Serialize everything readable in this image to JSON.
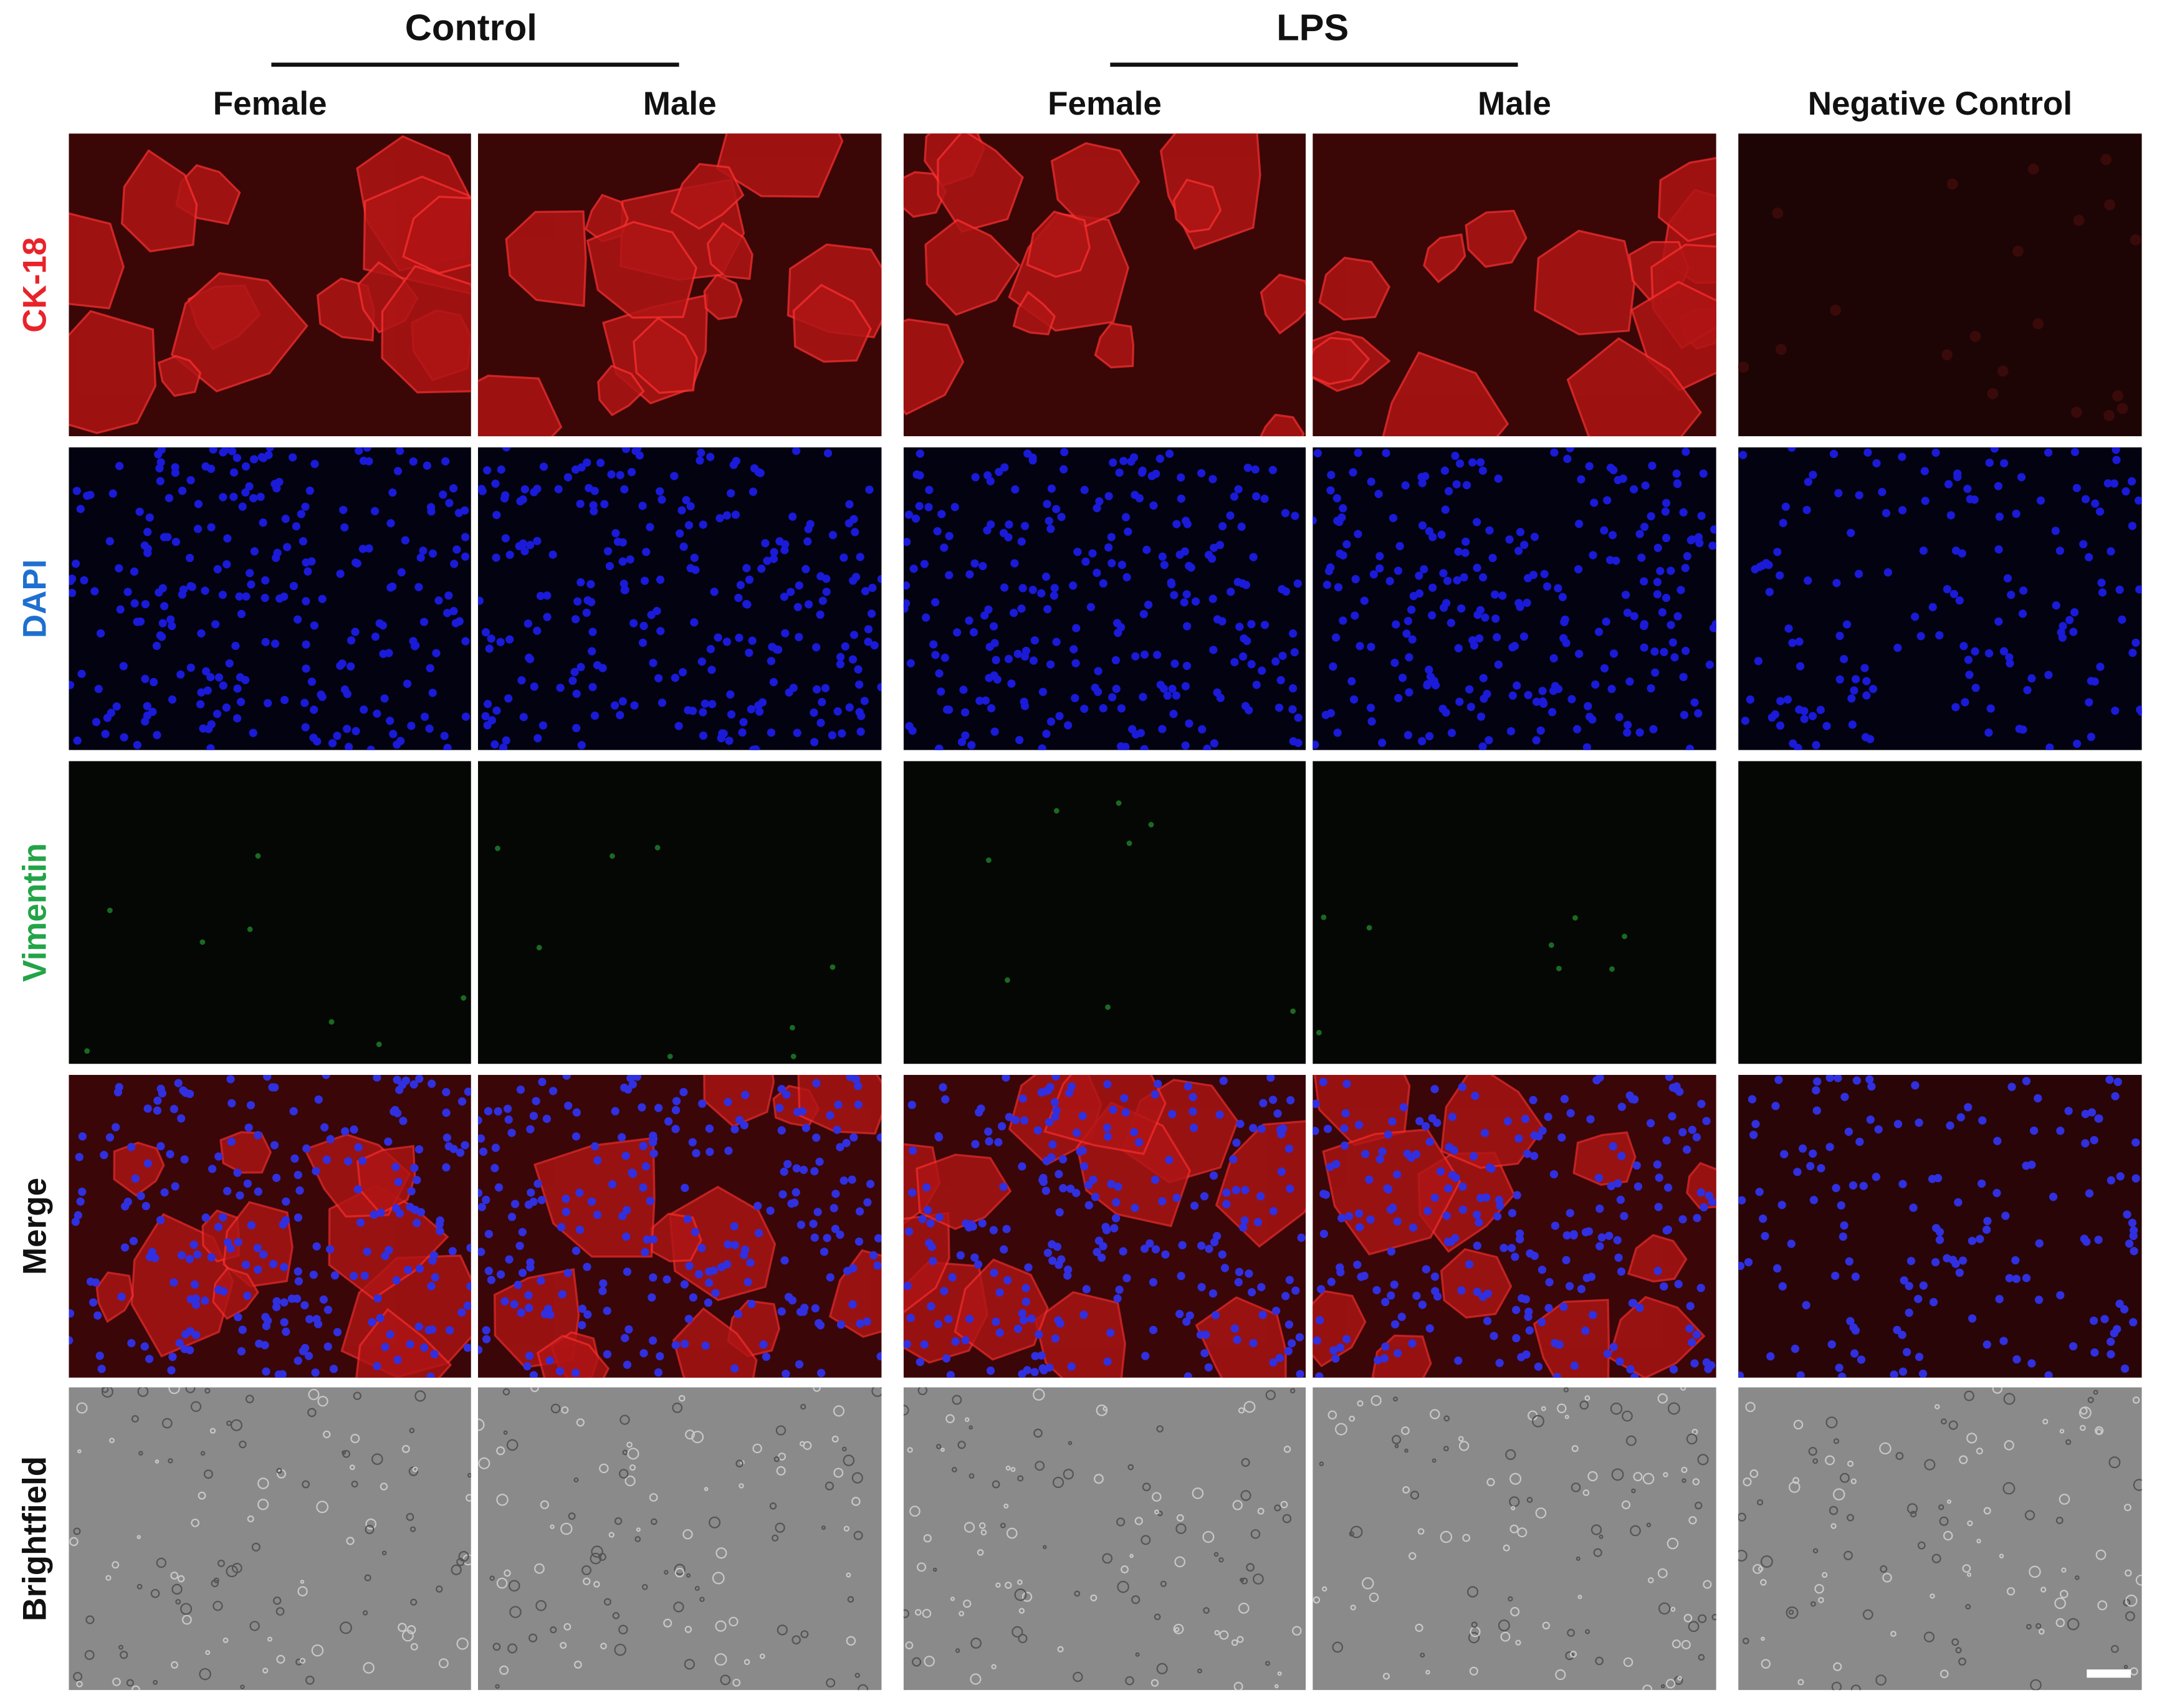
{
  "figure": {
    "groups": [
      "Control",
      "LPS"
    ],
    "columns": [
      "Female",
      "Male",
      "Female",
      "Male",
      "Negative Control"
    ],
    "rows": [
      "CK-18",
      "DAPI",
      "Vimentin",
      "Merge",
      "Brightfield"
    ]
  }
}
